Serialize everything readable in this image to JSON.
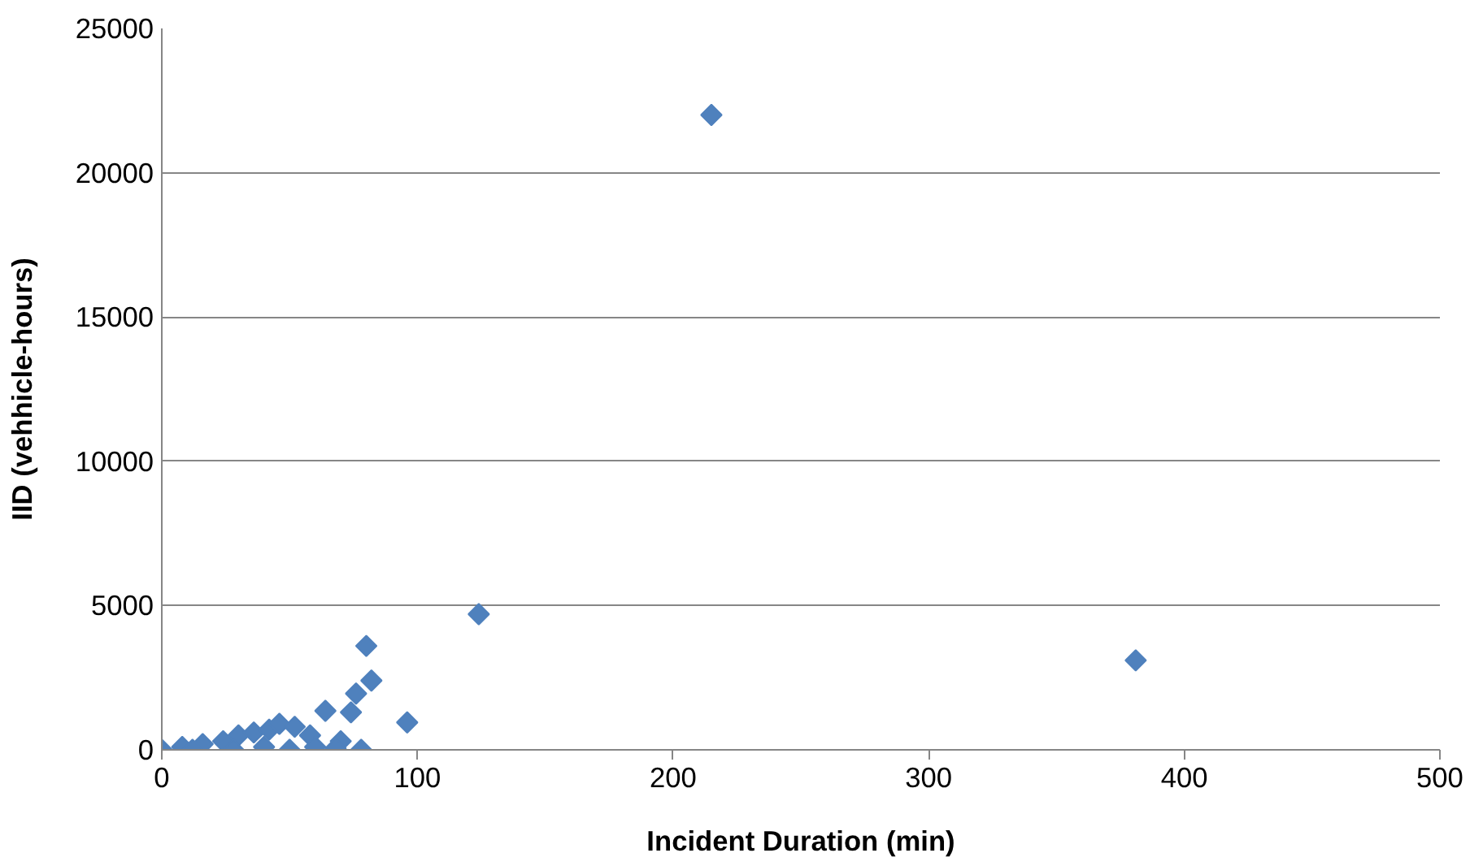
{
  "chart_data": {
    "type": "scatter",
    "xlabel": "Incident Duration (min)",
    "ylabel": "IID (vehhicle-hours)",
    "xlim": [
      0,
      500
    ],
    "ylim": [
      0,
      25000
    ],
    "xticks": [
      0,
      100,
      200,
      300,
      400,
      500
    ],
    "yticks": [
      0,
      5000,
      10000,
      15000,
      20000,
      25000
    ],
    "grid": "y",
    "marker": "diamond",
    "series": [
      {
        "color": "#4f81bd",
        "x": [
          0,
          8,
          16,
          24,
          30,
          36,
          42,
          46,
          52,
          58,
          64,
          70,
          12,
          28,
          40,
          50,
          60,
          68,
          74,
          76,
          78,
          80,
          82,
          96,
          124,
          215,
          381
        ],
        "values": [
          0,
          100,
          200,
          300,
          500,
          600,
          700,
          900,
          800,
          500,
          1350,
          300,
          0,
          0,
          100,
          0,
          100,
          50,
          1300,
          1950,
          0,
          3600,
          2400,
          950,
          4700,
          22000,
          3100
        ]
      }
    ]
  }
}
